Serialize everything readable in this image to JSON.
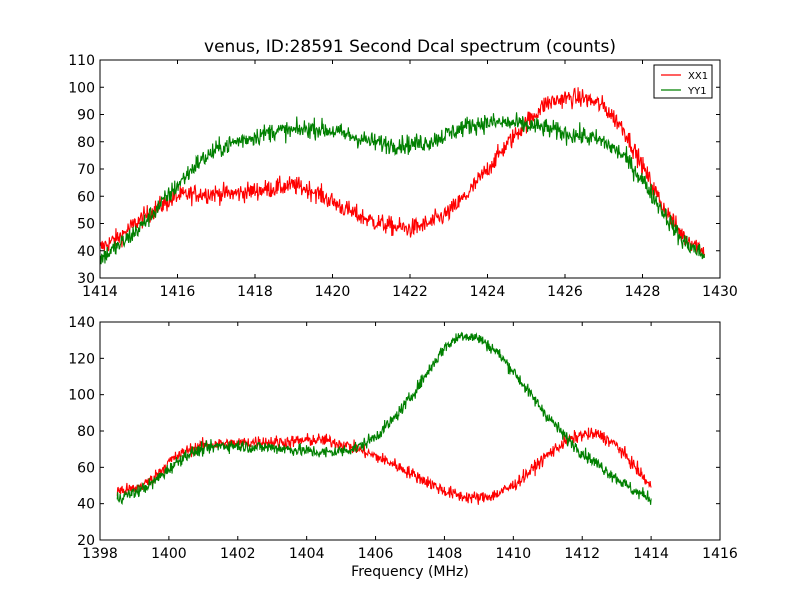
{
  "chart_data": [
    {
      "type": "line",
      "title": "venus, ID:28591 Second Dcal spectrum (counts)",
      "xlabel": "",
      "ylabel": "",
      "xlim": [
        1414,
        1430
      ],
      "ylim": [
        30,
        110
      ],
      "xticks": [
        "1414",
        "1416",
        "1418",
        "1420",
        "1422",
        "1424",
        "1426",
        "1428",
        "1430"
      ],
      "yticks": [
        "30",
        "40",
        "50",
        "60",
        "70",
        "80",
        "90",
        "100",
        "110"
      ],
      "legend": "top-right",
      "noise": 2.5,
      "series": [
        {
          "name": "XX1",
          "color": "#ff0000",
          "points": [
            [
              1414.0,
              41
            ],
            [
              1414.5,
              45
            ],
            [
              1415.0,
              51
            ],
            [
              1415.5,
              56
            ],
            [
              1416.0,
              60
            ],
            [
              1416.5,
              61
            ],
            [
              1417.0,
              61
            ],
            [
              1417.5,
              61
            ],
            [
              1418.0,
              62
            ],
            [
              1418.5,
              63
            ],
            [
              1419.0,
              64
            ],
            [
              1419.5,
              62
            ],
            [
              1420.0,
              58
            ],
            [
              1420.5,
              54
            ],
            [
              1421.0,
              51
            ],
            [
              1421.5,
              49
            ],
            [
              1422.0,
              48
            ],
            [
              1422.5,
              50
            ],
            [
              1423.0,
              54
            ],
            [
              1423.5,
              61
            ],
            [
              1424.0,
              70
            ],
            [
              1424.5,
              79
            ],
            [
              1425.0,
              87
            ],
            [
              1425.5,
              94
            ],
            [
              1426.0,
              96
            ],
            [
              1426.5,
              96
            ],
            [
              1427.0,
              93
            ],
            [
              1427.5,
              85
            ],
            [
              1428.0,
              71
            ],
            [
              1428.5,
              57
            ],
            [
              1429.0,
              46
            ],
            [
              1429.6,
              40
            ]
          ]
        },
        {
          "name": "YY1",
          "color": "#008000",
          "points": [
            [
              1414.0,
              37
            ],
            [
              1414.5,
              42
            ],
            [
              1415.0,
              48
            ],
            [
              1415.5,
              56
            ],
            [
              1416.0,
              64
            ],
            [
              1416.5,
              72
            ],
            [
              1417.0,
              77
            ],
            [
              1417.5,
              80
            ],
            [
              1418.0,
              82
            ],
            [
              1418.5,
              84
            ],
            [
              1419.0,
              84
            ],
            [
              1419.5,
              85
            ],
            [
              1420.0,
              84
            ],
            [
              1420.5,
              82
            ],
            [
              1421.0,
              80
            ],
            [
              1421.5,
              79
            ],
            [
              1422.0,
              79
            ],
            [
              1422.5,
              80
            ],
            [
              1423.0,
              83
            ],
            [
              1423.5,
              86
            ],
            [
              1424.0,
              87
            ],
            [
              1424.5,
              87
            ],
            [
              1425.0,
              86
            ],
            [
              1425.5,
              85
            ],
            [
              1426.0,
              83
            ],
            [
              1426.5,
              82
            ],
            [
              1427.0,
              80
            ],
            [
              1427.5,
              75
            ],
            [
              1428.0,
              66
            ],
            [
              1428.5,
              55
            ],
            [
              1429.0,
              44
            ],
            [
              1429.6,
              38
            ]
          ]
        }
      ]
    },
    {
      "type": "line",
      "title": "",
      "xlabel": "Frequency (MHz)",
      "ylabel": "",
      "xlim": [
        1398,
        1416
      ],
      "ylim": [
        20,
        140
      ],
      "xticks": [
        "1398",
        "1400",
        "1402",
        "1404",
        "1406",
        "1408",
        "1410",
        "1412",
        "1414",
        "1416"
      ],
      "yticks": [
        "20",
        "40",
        "60",
        "80",
        "100",
        "120",
        "140"
      ],
      "noise": 2.5,
      "series": [
        {
          "name": "XX1",
          "color": "#ff0000",
          "points": [
            [
              1398.5,
              47
            ],
            [
              1399.0,
              48
            ],
            [
              1399.5,
              53
            ],
            [
              1400.0,
              63
            ],
            [
              1400.5,
              69
            ],
            [
              1401.0,
              72
            ],
            [
              1401.5,
              73
            ],
            [
              1402.0,
              73
            ],
            [
              1402.5,
              74
            ],
            [
              1403.0,
              74
            ],
            [
              1403.5,
              74
            ],
            [
              1404.0,
              75
            ],
            [
              1404.5,
              75
            ],
            [
              1405.0,
              73
            ],
            [
              1405.5,
              70
            ],
            [
              1406.0,
              66
            ],
            [
              1406.5,
              62
            ],
            [
              1407.0,
              57
            ],
            [
              1407.5,
              52
            ],
            [
              1408.0,
              47
            ],
            [
              1408.5,
              44
            ],
            [
              1409.0,
              43
            ],
            [
              1409.5,
              45
            ],
            [
              1410.0,
              50
            ],
            [
              1410.5,
              58
            ],
            [
              1411.0,
              67
            ],
            [
              1411.5,
              74
            ],
            [
              1412.0,
              78
            ],
            [
              1412.5,
              78
            ],
            [
              1413.0,
              72
            ],
            [
              1413.5,
              61
            ],
            [
              1414.0,
              49
            ]
          ]
        },
        {
          "name": "YY1",
          "color": "#008000",
          "points": [
            [
              1398.5,
              43
            ],
            [
              1399.0,
              46
            ],
            [
              1399.5,
              51
            ],
            [
              1400.0,
              59
            ],
            [
              1400.5,
              67
            ],
            [
              1401.0,
              70
            ],
            [
              1401.5,
              72
            ],
            [
              1402.0,
              72
            ],
            [
              1402.5,
              71
            ],
            [
              1403.0,
              71
            ],
            [
              1403.5,
              70
            ],
            [
              1404.0,
              69
            ],
            [
              1404.5,
              68
            ],
            [
              1405.0,
              69
            ],
            [
              1405.5,
              71
            ],
            [
              1406.0,
              77
            ],
            [
              1406.5,
              86
            ],
            [
              1407.0,
              98
            ],
            [
              1407.5,
              112
            ],
            [
              1408.0,
              126
            ],
            [
              1408.5,
              133
            ],
            [
              1409.0,
              131
            ],
            [
              1409.5,
              124
            ],
            [
              1410.0,
              113
            ],
            [
              1410.5,
              100
            ],
            [
              1411.0,
              88
            ],
            [
              1411.5,
              77
            ],
            [
              1412.0,
              68
            ],
            [
              1412.5,
              61
            ],
            [
              1413.0,
              54
            ],
            [
              1413.5,
              47
            ],
            [
              1414.0,
              43
            ]
          ]
        }
      ]
    }
  ]
}
